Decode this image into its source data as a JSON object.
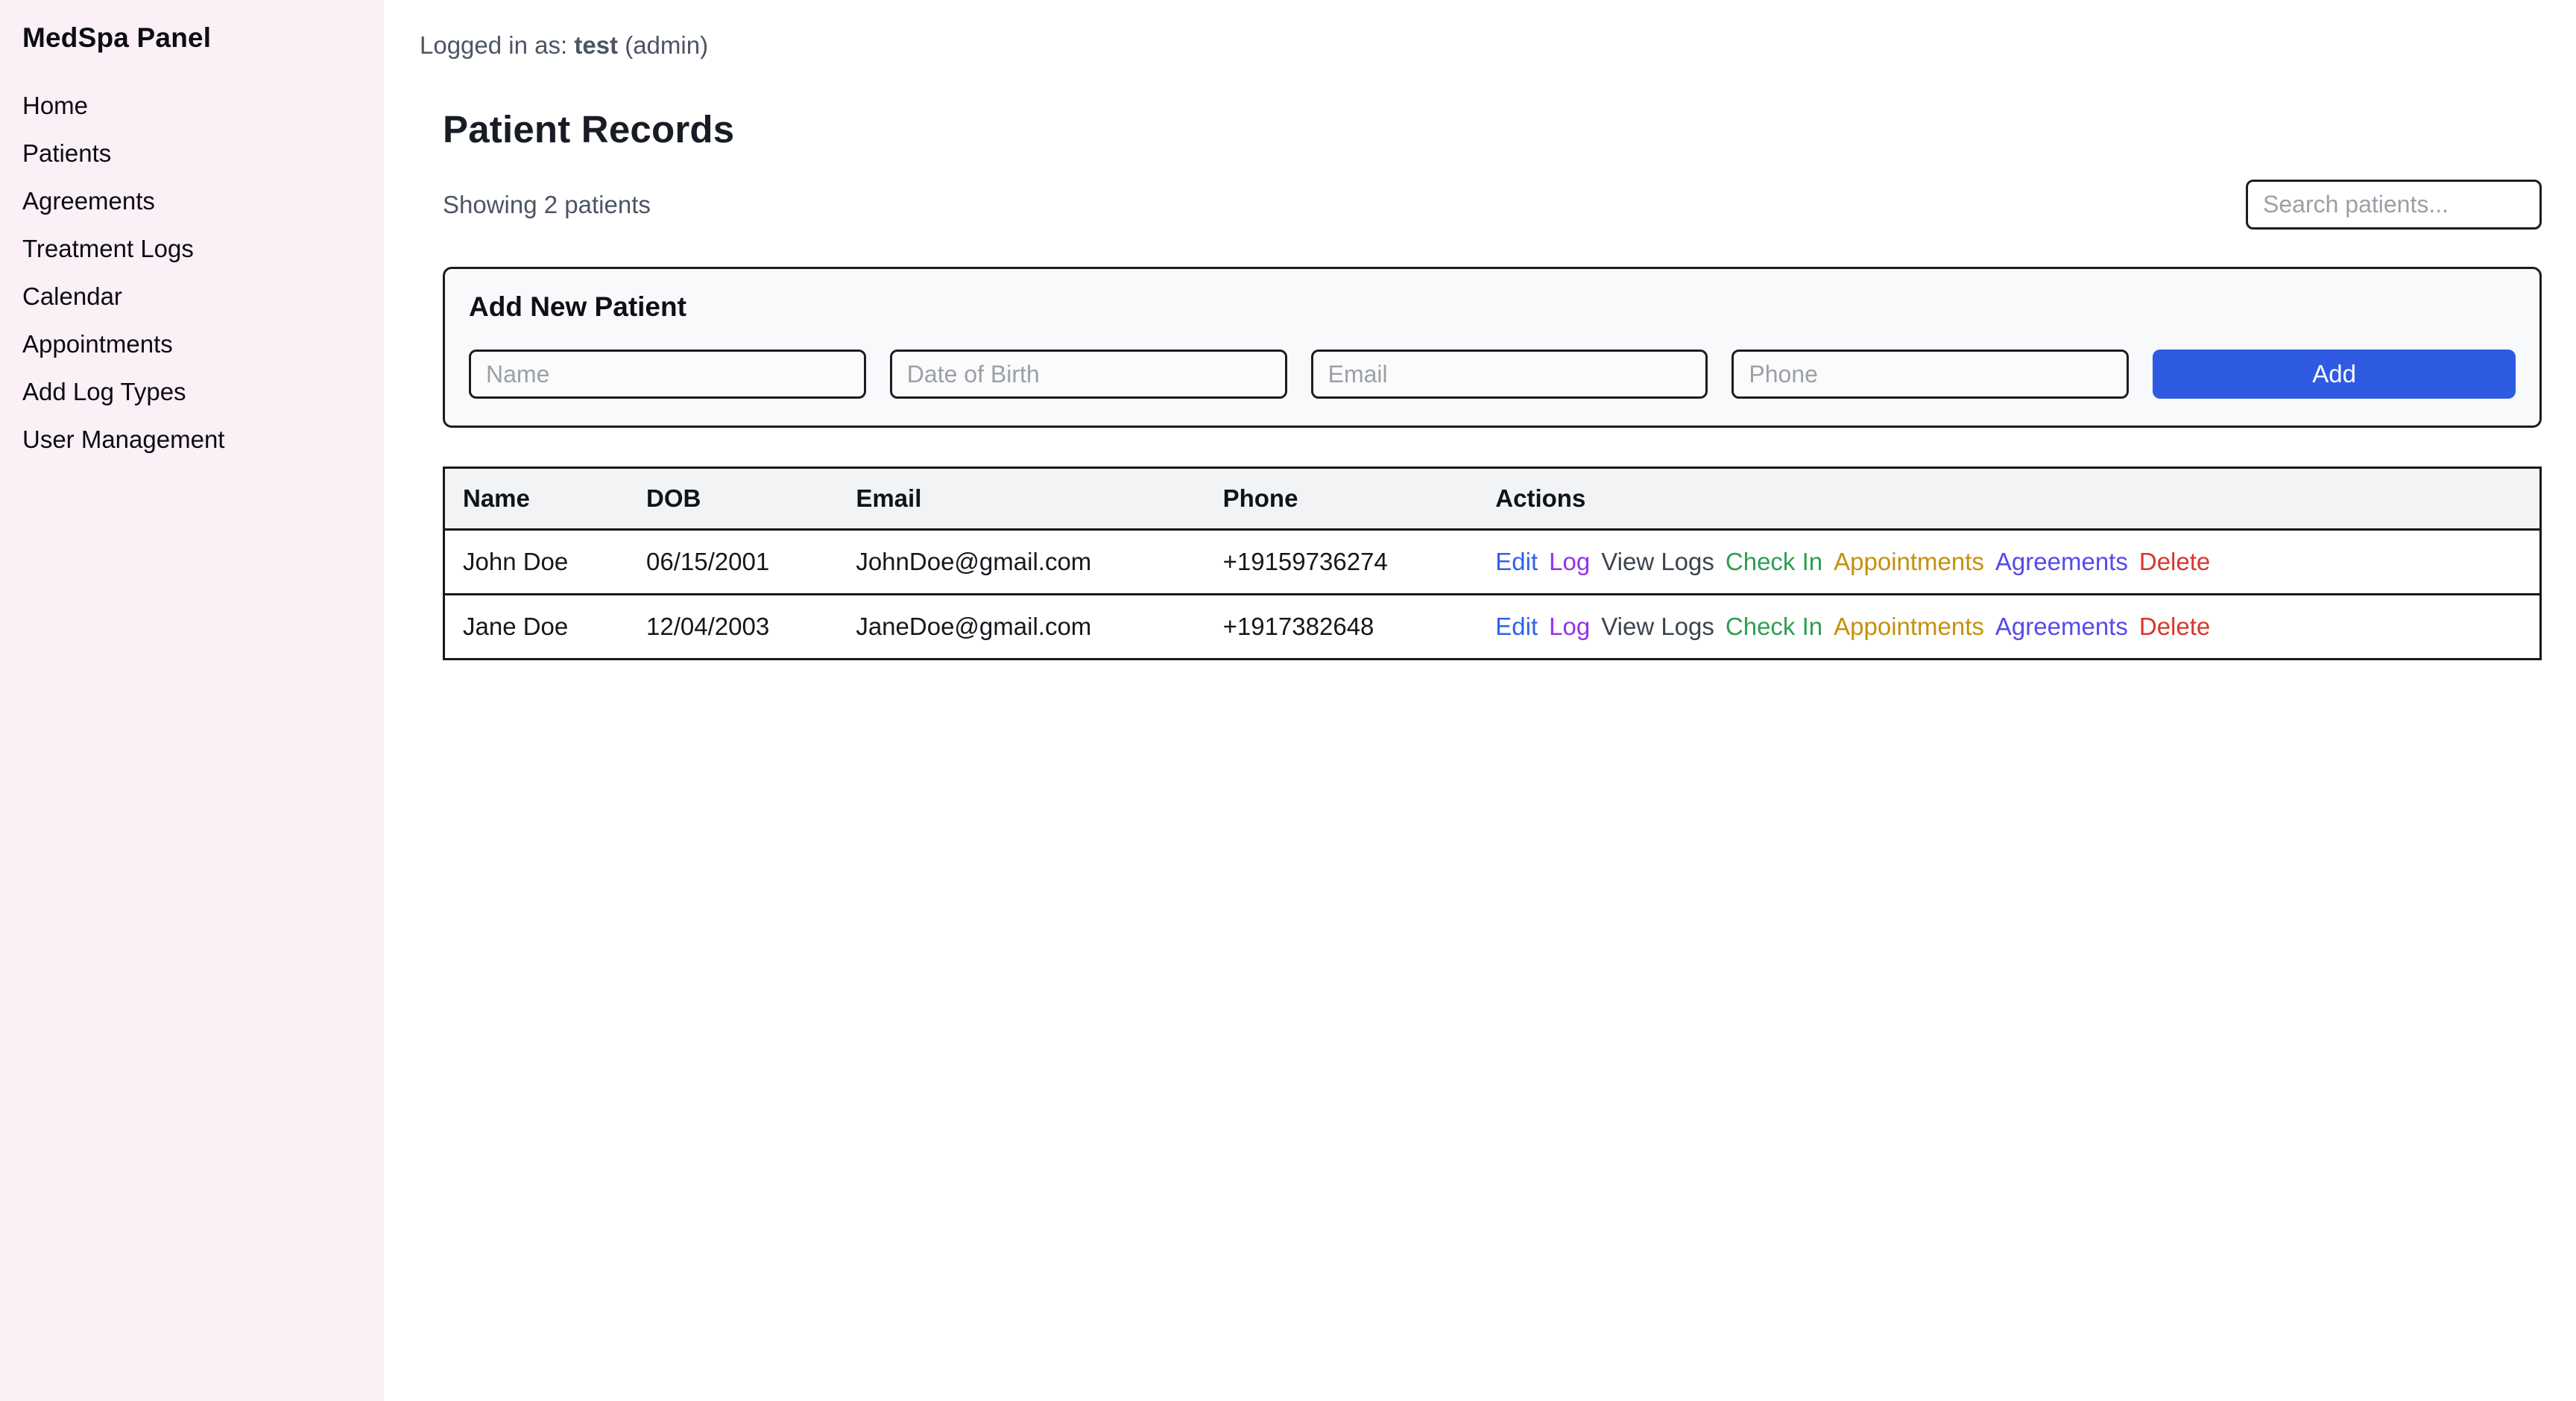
{
  "app": {
    "title": "MedSpa Panel"
  },
  "sidebar": {
    "items": [
      {
        "label": "Home"
      },
      {
        "label": "Patients"
      },
      {
        "label": "Agreements"
      },
      {
        "label": "Treatment Logs"
      },
      {
        "label": "Calendar"
      },
      {
        "label": "Appointments"
      },
      {
        "label": "Add Log Types"
      },
      {
        "label": "User Management"
      }
    ]
  },
  "topbar": {
    "prefix": "Logged in as: ",
    "username": "test",
    "suffix": " (admin)"
  },
  "page": {
    "title": "Patient Records",
    "showing_text": "Showing 2 patients",
    "search_placeholder": "Search patients..."
  },
  "add_patient": {
    "title": "Add New Patient",
    "name_placeholder": "Name",
    "dob_placeholder": "Date of Birth",
    "email_placeholder": "Email",
    "phone_placeholder": "Phone",
    "add_label": "Add"
  },
  "table": {
    "headers": [
      "Name",
      "DOB",
      "Email",
      "Phone",
      "Actions"
    ],
    "rows": [
      {
        "name": "John Doe",
        "dob": "06/15/2001",
        "email": "JohnDoe@gmail.com",
        "phone": "+19159736274"
      },
      {
        "name": "Jane Doe",
        "dob": "12/04/2003",
        "email": "JaneDoe@gmail.com",
        "phone": "+1917382648"
      }
    ],
    "actions": [
      {
        "label": "Edit",
        "color": "#2f62ea"
      },
      {
        "label": "Log",
        "color": "#9333ea"
      },
      {
        "label": "View Logs",
        "color": "#3d4450"
      },
      {
        "label": "Check In",
        "color": "#2e9f52"
      },
      {
        "label": "Appointments",
        "color": "#c5900d"
      },
      {
        "label": "Agreements",
        "color": "#554ae8"
      },
      {
        "label": "Delete",
        "color": "#da352c"
      }
    ]
  },
  "colors": {
    "sidebar_bg": "#faf0f6",
    "accent_blue": "#2e5be1",
    "panel_bg": "#f8f9fa",
    "table_header_bg": "#f1f3f5",
    "border_dark": "#1b1d22",
    "muted_text": "#4c5564"
  }
}
